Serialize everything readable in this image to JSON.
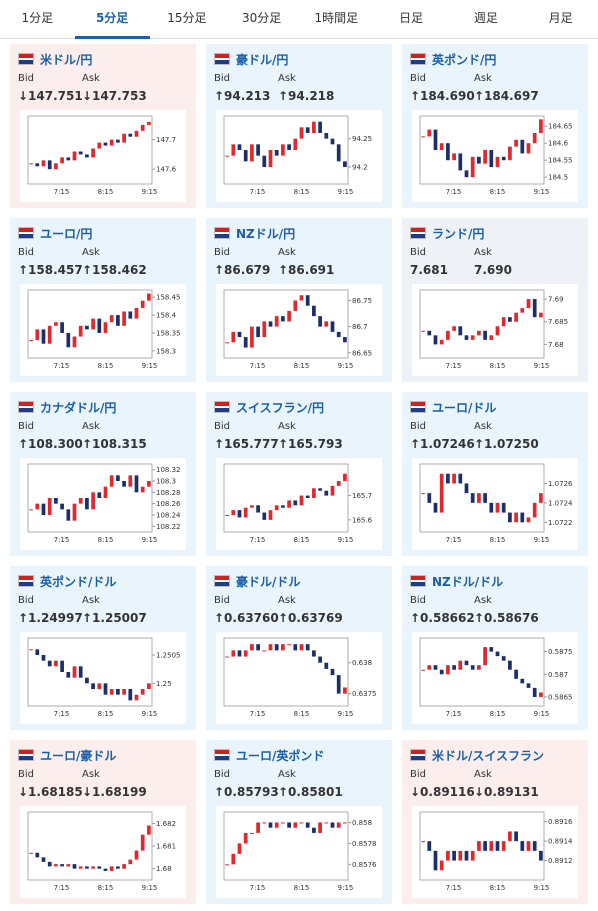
{
  "tabs": [
    "1分足",
    "5分足",
    "15分足",
    "30分足",
    "1時間足",
    "日足",
    "週足",
    "月足"
  ],
  "active_tab": 1,
  "cards": [
    {
      "title": "米ドル/円",
      "bid_label": "Bid",
      "ask_label": "Ask",
      "bid": "↓147.751",
      "ask": "↓147.753",
      "chart": {
        "type": "candlestick",
        "values": [
          147.62,
          147.61,
          147.63,
          147.6,
          147.62,
          147.64,
          147.63,
          147.66,
          147.65,
          147.64,
          147.67,
          147.69,
          147.68,
          147.7,
          147.69,
          147.72,
          147.71,
          147.73,
          147.75,
          147.76
        ],
        "ylim": [
          147.55,
          147.78
        ],
        "yticks": [
          147.6,
          147.7
        ],
        "xticks": [
          "7:15",
          "8:15",
          "9:15"
        ]
      }
    },
    {
      "title": "豪ドル/円",
      "bid_label": "Bid",
      "ask_label": "Ask",
      "bid": "↑94.213",
      "ask": "↑94.218",
      "chart": {
        "type": "candlestick",
        "values": [
          94.22,
          94.24,
          94.23,
          94.21,
          94.24,
          94.22,
          94.2,
          94.23,
          94.22,
          94.24,
          94.23,
          94.25,
          94.27,
          94.26,
          94.28,
          94.26,
          94.25,
          94.24,
          94.21,
          94.2
        ],
        "ylim": [
          94.17,
          94.29
        ],
        "yticks": [
          94.2,
          94.25
        ],
        "xticks": [
          "7:15",
          "8:15",
          "9:15"
        ]
      }
    },
    {
      "title": "英ポンド/円",
      "bid_label": "Bid",
      "ask_label": "Ask",
      "bid": "↑184.690",
      "ask": "↑184.697",
      "chart": {
        "type": "candlestick",
        "values": [
          184.62,
          184.64,
          184.58,
          184.6,
          184.55,
          184.57,
          184.52,
          184.5,
          184.56,
          184.54,
          184.58,
          184.53,
          184.56,
          184.55,
          184.59,
          184.61,
          184.57,
          184.6,
          184.63,
          184.67
        ],
        "ylim": [
          184.48,
          184.68
        ],
        "yticks": [
          184.5,
          184.55,
          184.6,
          184.65
        ],
        "xticks": [
          "7:15",
          "8:15",
          "9:15"
        ]
      }
    },
    {
      "title": "ユーロ/円",
      "bid_label": "Bid",
      "ask_label": "Ask",
      "bid": "↑158.457",
      "ask": "↑158.462",
      "chart": {
        "type": "candlestick",
        "values": [
          158.33,
          158.36,
          158.32,
          158.37,
          158.38,
          158.35,
          158.31,
          158.34,
          158.37,
          158.36,
          158.39,
          158.35,
          158.38,
          158.4,
          158.37,
          158.41,
          158.39,
          158.42,
          158.44,
          158.46
        ],
        "ylim": [
          158.28,
          158.47
        ],
        "yticks": [
          158.3,
          158.35,
          158.4,
          158.45
        ],
        "xticks": [
          "7:15",
          "8:15",
          "9:15"
        ]
      }
    },
    {
      "title": "NZドル/円",
      "bid_label": "Bid",
      "ask_label": "Ask",
      "bid": "↑86.679",
      "ask": "↑86.691",
      "chart": {
        "type": "candlestick",
        "values": [
          86.67,
          86.69,
          86.68,
          86.66,
          86.7,
          86.68,
          86.71,
          86.7,
          86.72,
          86.71,
          86.73,
          86.75,
          86.76,
          86.74,
          86.72,
          86.7,
          86.71,
          86.69,
          86.68,
          86.67
        ],
        "ylim": [
          86.64,
          86.77
        ],
        "yticks": [
          86.65,
          86.7,
          86.75
        ],
        "xticks": [
          "7:15",
          "8:15",
          "9:15"
        ]
      }
    },
    {
      "title": "ランド/円",
      "bid_label": "Bid",
      "ask_label": "Ask",
      "bid": "7.681",
      "ask": "7.690",
      "chart": {
        "type": "candlestick",
        "values": [
          7.683,
          7.682,
          7.68,
          7.681,
          7.683,
          7.684,
          7.682,
          7.681,
          7.682,
          7.683,
          7.681,
          7.682,
          7.684,
          7.686,
          7.685,
          7.687,
          7.688,
          7.69,
          7.686,
          7.687
        ],
        "ylim": [
          7.677,
          7.692
        ],
        "yticks": [
          7.68,
          7.685,
          7.69
        ],
        "xticks": [
          "7:15",
          "8:15",
          "9:15"
        ]
      }
    },
    {
      "title": "カナダドル/円",
      "bid_label": "Bid",
      "ask_label": "Ask",
      "bid": "↑108.300",
      "ask": "↑108.315",
      "chart": {
        "type": "candlestick",
        "values": [
          108.25,
          108.26,
          108.24,
          108.27,
          108.26,
          108.25,
          108.23,
          108.26,
          108.27,
          108.25,
          108.28,
          108.27,
          108.29,
          108.31,
          108.3,
          108.29,
          108.31,
          108.28,
          108.29,
          108.3
        ],
        "ylim": [
          108.21,
          108.33
        ],
        "yticks": [
          108.22,
          108.24,
          108.26,
          108.28,
          108.3,
          108.32
        ],
        "xticks": [
          "7:15",
          "8:15",
          "9:15"
        ]
      }
    },
    {
      "title": "スイスフラン/円",
      "bid_label": "Bid",
      "ask_label": "Ask",
      "bid": "↑165.777",
      "ask": "↑165.793",
      "chart": {
        "type": "candlestick",
        "values": [
          165.62,
          165.64,
          165.61,
          165.65,
          165.66,
          165.63,
          165.6,
          165.64,
          165.66,
          165.65,
          165.68,
          165.66,
          165.7,
          165.69,
          165.73,
          165.72,
          165.7,
          165.74,
          165.76,
          165.79
        ],
        "ylim": [
          165.55,
          165.83
        ],
        "yticks": [
          165.6,
          165.7
        ],
        "xticks": [
          "7:15",
          "8:15",
          "9:15"
        ]
      }
    },
    {
      "title": "ユーロ/ドル",
      "bid_label": "Bid",
      "ask_label": "Ask",
      "bid": "↑1.07246",
      "ask": "↑1.07250",
      "chart": {
        "type": "candlestick",
        "values": [
          1.0725,
          1.0724,
          1.0723,
          1.0727,
          1.0726,
          1.0727,
          1.0726,
          1.0725,
          1.0724,
          1.0725,
          1.0724,
          1.0723,
          1.0724,
          1.0723,
          1.0722,
          1.0723,
          1.0722,
          1.07225,
          1.0724,
          1.0725
        ],
        "ylim": [
          1.0721,
          1.0728
        ],
        "yticks": [
          1.0722,
          1.0724,
          1.0726
        ],
        "xticks": [
          "7:15",
          "8:15",
          "9:15"
        ]
      }
    },
    {
      "title": "英ポンド/ドル",
      "bid_label": "Bid",
      "ask_label": "Ask",
      "bid": "↑1.24997",
      "ask": "↑1.25007",
      "chart": {
        "type": "candlestick",
        "values": [
          1.2506,
          1.2505,
          1.2504,
          1.2503,
          1.2504,
          1.2502,
          1.2501,
          1.2503,
          1.2501,
          1.25,
          1.2499,
          1.25,
          1.2498,
          1.2499,
          1.2498,
          1.2499,
          1.2497,
          1.2498,
          1.2499,
          1.25
        ],
        "ylim": [
          1.2496,
          1.2508
        ],
        "yticks": [
          1.25,
          1.2505
        ],
        "xticks": [
          "7:15",
          "8:15",
          "9:15"
        ]
      }
    },
    {
      "title": "豪ドル/ドル",
      "bid_label": "Bid",
      "ask_label": "Ask",
      "bid": "↑0.63760",
      "ask": "↑0.63769",
      "chart": {
        "type": "candlestick",
        "values": [
          0.6381,
          0.6382,
          0.6381,
          0.6382,
          0.6383,
          0.6382,
          0.6382,
          0.6383,
          0.6382,
          0.6383,
          0.6383,
          0.6382,
          0.6383,
          0.6382,
          0.6381,
          0.638,
          0.6379,
          0.6378,
          0.6375,
          0.6376
        ],
        "ylim": [
          0.6373,
          0.6384
        ],
        "yticks": [
          0.6375,
          0.638
        ],
        "xticks": [
          "7:15",
          "8:15",
          "9:15"
        ]
      }
    },
    {
      "title": "NZドル/ドル",
      "bid_label": "Bid",
      "ask_label": "Ask",
      "bid": "↑0.58662",
      "ask": "↑0.58676",
      "chart": {
        "type": "candlestick",
        "values": [
          0.5871,
          0.5872,
          0.5871,
          0.587,
          0.5872,
          0.5871,
          0.5873,
          0.5872,
          0.5871,
          0.5872,
          0.5876,
          0.5875,
          0.5874,
          0.5873,
          0.5871,
          0.5869,
          0.5868,
          0.5867,
          0.5865,
          0.5866
        ],
        "ylim": [
          0.5863,
          0.5878
        ],
        "yticks": [
          0.5865,
          0.587,
          0.5875
        ],
        "xticks": [
          "7:15",
          "8:15",
          "9:15"
        ]
      }
    },
    {
      "title": "ユーロ/豪ドル",
      "bid_label": "Bid",
      "ask_label": "Ask",
      "bid": "↓1.68185",
      "ask": "↓1.68199",
      "chart": {
        "type": "candlestick",
        "values": [
          1.6807,
          1.6805,
          1.6803,
          1.6801,
          1.6802,
          1.6801,
          1.6802,
          1.68,
          1.6801,
          1.68,
          1.6801,
          1.68,
          1.6799,
          1.6801,
          1.68,
          1.6802,
          1.6804,
          1.6808,
          1.6815,
          1.6819
        ],
        "ylim": [
          1.6795,
          1.6825
        ],
        "yticks": [
          1.68,
          1.681,
          1.682
        ],
        "xticks": [
          "7:15",
          "8:15",
          "9:15"
        ]
      }
    },
    {
      "title": "ユーロ/英ポンド",
      "bid_label": "Bid",
      "ask_label": "Ask",
      "bid": "↑0.85793",
      "ask": "↑0.85801",
      "chart": {
        "type": "candlestick",
        "values": [
          0.8576,
          0.8577,
          0.8578,
          0.8579,
          0.8579,
          0.858,
          0.858,
          0.85795,
          0.858,
          0.858,
          0.85795,
          0.858,
          0.858,
          0.85795,
          0.8579,
          0.858,
          0.858,
          0.85795,
          0.858,
          0.858
        ],
        "ylim": [
          0.85745,
          0.8581
        ],
        "yticks": [
          0.8576,
          0.8578,
          0.858
        ],
        "xticks": [
          "7:15",
          "8:15",
          "9:15"
        ]
      }
    },
    {
      "title": "米ドル/スイスフラン",
      "bid_label": "Bid",
      "ask_label": "Ask",
      "bid": "↓0.89116",
      "ask": "↓0.89131",
      "chart": {
        "type": "candlestick",
        "values": [
          0.8914,
          0.8913,
          0.8911,
          0.8912,
          0.8913,
          0.8912,
          0.8913,
          0.8912,
          0.8913,
          0.8914,
          0.8913,
          0.8914,
          0.8913,
          0.8914,
          0.8915,
          0.8914,
          0.8913,
          0.8914,
          0.8913,
          0.8912
        ],
        "ylim": [
          0.891,
          0.8917
        ],
        "yticks": [
          0.8912,
          0.8914,
          0.8916
        ],
        "xticks": [
          "7:15",
          "8:15",
          "9:15"
        ]
      }
    }
  ]
}
